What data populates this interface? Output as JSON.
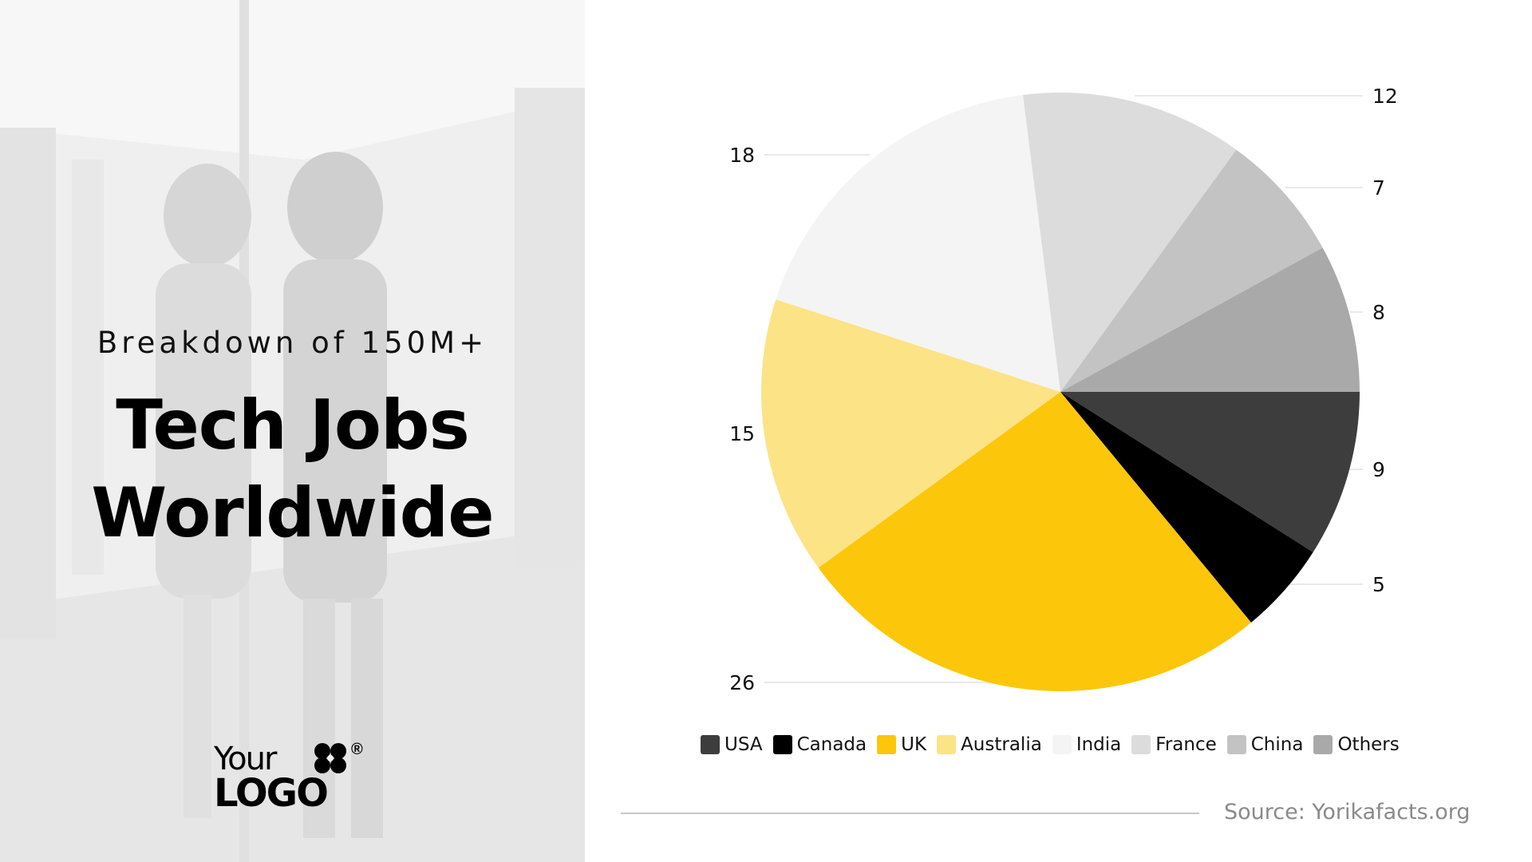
{
  "slide": {
    "subtitle": "Breakdown of 150M+",
    "title_line1": "Tech Jobs",
    "title_line2": "Worldwide",
    "source": "Source: Yorikafacts.org"
  },
  "logo": {
    "word1": "Your",
    "word2": "LOGO",
    "reg": "®"
  },
  "chart_data": {
    "type": "pie",
    "title": "",
    "categories": [
      "USA",
      "Canada",
      "UK",
      "Australia",
      "India",
      "France",
      "China",
      "Others"
    ],
    "values": [
      9,
      5,
      26,
      15,
      18,
      12,
      7,
      8
    ],
    "colors": [
      "#3d3d3d",
      "#000000",
      "#fcc70a",
      "#fce385",
      "#f4f4f4",
      "#dcdcdc",
      "#c3c3c3",
      "#a9a9a9"
    ],
    "legend_position": "bottom",
    "data_labels": "outside with leader lines"
  }
}
